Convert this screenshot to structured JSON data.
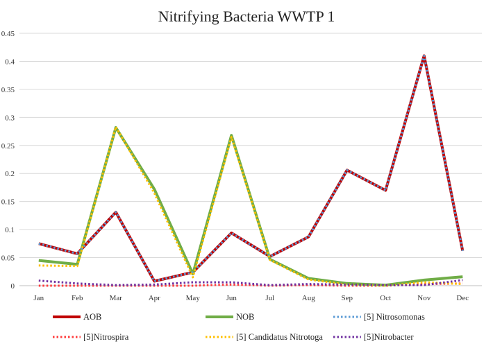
{
  "chart_data": {
    "type": "line",
    "title": "Nitrifying Bacteria WWTP 1",
    "xlabel": "",
    "ylabel": "",
    "categories": [
      "Jan",
      "Feb",
      "Mar",
      "Apr",
      "May",
      "Jun",
      "Jul",
      "Aug",
      "Sep",
      "Oct",
      "Nov",
      "Dec"
    ],
    "ylim": [
      0,
      0.45
    ],
    "yticks": [
      "0",
      "0.05",
      "0.1",
      "0.15",
      "0.2",
      "0.25",
      "0.3",
      "0.35",
      "0.4",
      "0.45"
    ],
    "grid": true,
    "legend_position": "bottom",
    "series": [
      {
        "name": "AOB",
        "color": "#c00000",
        "style": "solid",
        "values": [
          0.075,
          0.057,
          0.131,
          0.008,
          0.024,
          0.094,
          0.052,
          0.087,
          0.206,
          0.17,
          0.41,
          0.062
        ]
      },
      {
        "name": "NOB",
        "color": "#70ad47",
        "style": "solid",
        "values": [
          0.045,
          0.038,
          0.282,
          0.172,
          0.021,
          0.268,
          0.047,
          0.013,
          0.004,
          0.001,
          0.01,
          0.016
        ]
      },
      {
        "name": "[5] Nitrosomonas",
        "color": "#5b9bd5",
        "style": "dotted",
        "values": [
          0.075,
          0.057,
          0.131,
          0.008,
          0.024,
          0.094,
          0.052,
          0.087,
          0.206,
          0.17,
          0.41,
          0.062
        ]
      },
      {
        "name": "[5]Nitrospira",
        "color": "#ff3b3b",
        "style": "dotted",
        "values": [
          0.0,
          0.0,
          0.0,
          0.0,
          0.0,
          0.002,
          0.0,
          0.001,
          0.0,
          0.0,
          0.003,
          0.004
        ]
      },
      {
        "name": "[5] Candidatus Nitrotoga",
        "color": "#ffc000",
        "style": "dotted",
        "values": [
          0.036,
          0.035,
          0.283,
          0.165,
          0.015,
          0.265,
          0.046,
          0.011,
          0.002,
          0.0,
          0.006,
          0.003
        ]
      },
      {
        "name": "[5]Nitrobacter",
        "color": "#7030a0",
        "style": "dotted",
        "values": [
          0.009,
          0.004,
          0.001,
          0.002,
          0.006,
          0.006,
          0.001,
          0.003,
          0.002,
          0.001,
          0.001,
          0.01
        ]
      }
    ]
  }
}
